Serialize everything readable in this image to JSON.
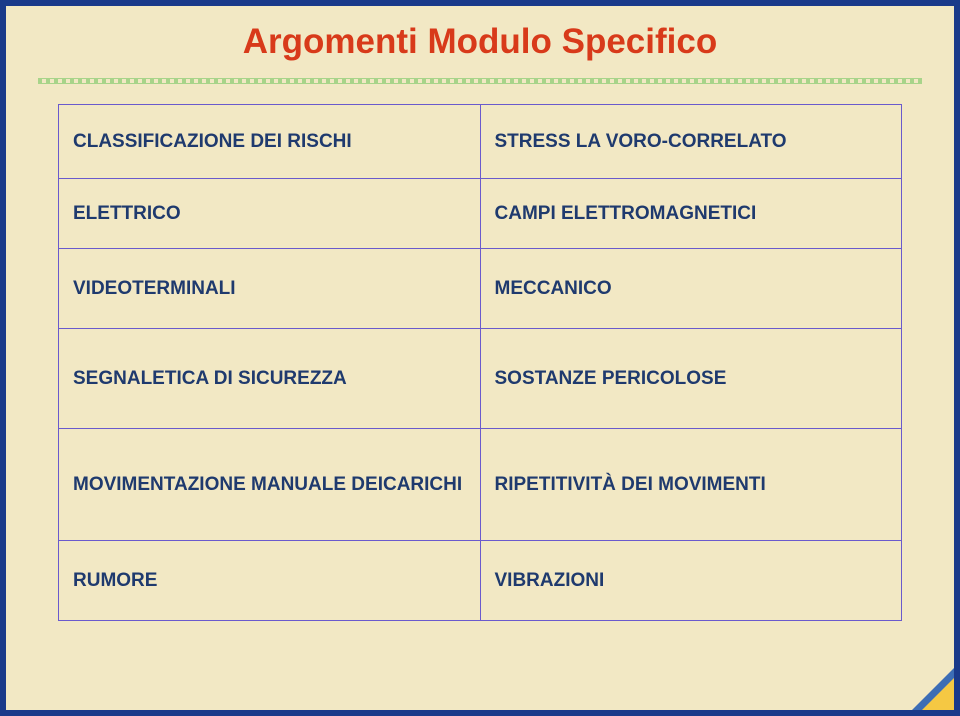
{
  "title": "Argomenti Modulo Specifico",
  "colors": {
    "background": "#f2e8c4",
    "frame_border": "#1a3a8a",
    "title_color": "#d83a1a",
    "cell_text": "#1f3a6e",
    "cell_border": "#6a5acd",
    "divider": "#a8d48a",
    "corner_outer": "#3c6db5",
    "corner_inner": "#f5c843"
  },
  "table": {
    "rows": [
      {
        "left": "CLASSIFICAZIONE DEI RISCHI",
        "right": "STRESS LA VORO-CORRELATO"
      },
      {
        "left": "ELETTRICO",
        "right": "CAMPI ELETTROMAGNETICI"
      },
      {
        "left": "VIDEOTERMINALI",
        "right": "MECCANICO"
      },
      {
        "left": "SEGNALETICA DI SICUREZZA",
        "right": "SOSTANZE PERICOLOSE"
      },
      {
        "left": "MOVIMENTAZIONE MANUALE DEICARICHI",
        "right": "RIPETITIVITÀ DEI MOVIMENTI"
      },
      {
        "left": "RUMORE",
        "right": "VIBRAZIONI"
      }
    ]
  }
}
